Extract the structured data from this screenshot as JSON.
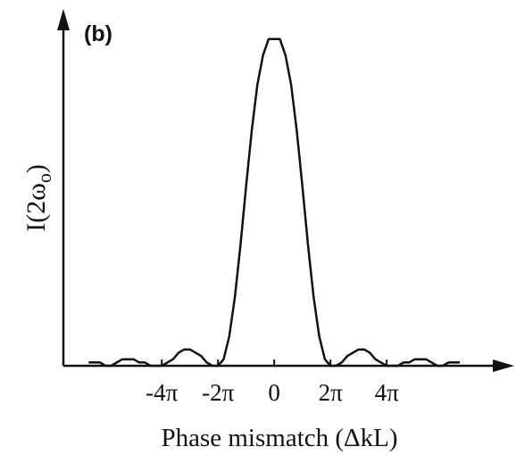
{
  "chart_data": {
    "type": "line",
    "panel_label": "(b)",
    "title": "",
    "xlabel": "Phase mismatch (ΔkL)",
    "ylabel": "I(2ω",
    "ylabel_subscript": "o",
    "ylabel_close": ")",
    "xlim": [
      -7.5,
      8.6
    ],
    "ylim": [
      0,
      1.01
    ],
    "x_ticks": [
      {
        "value": -4,
        "label": "-4π"
      },
      {
        "value": -2,
        "label": "-2π"
      },
      {
        "value": 0,
        "label": "0"
      },
      {
        "value": 2,
        "label": "2π"
      },
      {
        "value": 4,
        "label": "4π"
      }
    ],
    "x_units": "π",
    "grid": false,
    "legend": "none",
    "series": [
      {
        "curve": "sinc-squared",
        "x": [
          -6.6,
          -6.4,
          -6.2,
          -6.0,
          -5.8,
          -5.6,
          -5.4,
          -5.2,
          -5.0,
          -4.8,
          -4.6,
          -4.4,
          -4.2,
          -4.0,
          -3.8,
          -3.6,
          -3.4,
          -3.2,
          -3.0,
          -2.8,
          -2.6,
          -2.4,
          -2.2,
          -2.0,
          -1.8,
          -1.6,
          -1.4,
          -1.2,
          -1.0,
          -0.8,
          -0.6,
          -0.4,
          -0.2,
          0.0,
          0.2,
          0.4,
          0.6,
          0.8,
          1.0,
          1.2,
          1.4,
          1.6,
          1.8,
          2.0,
          2.2,
          2.4,
          2.6,
          2.8,
          3.0,
          3.2,
          3.4,
          3.6,
          3.8,
          4.0,
          4.2,
          4.4,
          4.6,
          4.8,
          5.0,
          5.2,
          5.4,
          5.6,
          5.8,
          6.0,
          6.2,
          6.4,
          6.6
        ],
        "y": [
          0.01,
          0.01,
          0.01,
          0.0,
          0.0,
          0.01,
          0.02,
          0.02,
          0.02,
          0.01,
          0.01,
          0.0,
          0.0,
          0.0,
          0.01,
          0.02,
          0.04,
          0.05,
          0.05,
          0.04,
          0.03,
          0.01,
          0.0,
          0.0,
          0.02,
          0.09,
          0.21,
          0.37,
          0.55,
          0.72,
          0.86,
          0.95,
          1.0,
          1.0,
          1.0,
          0.95,
          0.86,
          0.72,
          0.55,
          0.37,
          0.21,
          0.09,
          0.02,
          0.0,
          0.0,
          0.01,
          0.03,
          0.04,
          0.05,
          0.05,
          0.04,
          0.02,
          0.01,
          0.0,
          0.0,
          0.0,
          0.01,
          0.01,
          0.02,
          0.02,
          0.02,
          0.01,
          0.0,
          0.0,
          0.01,
          0.01,
          0.01
        ]
      }
    ]
  }
}
